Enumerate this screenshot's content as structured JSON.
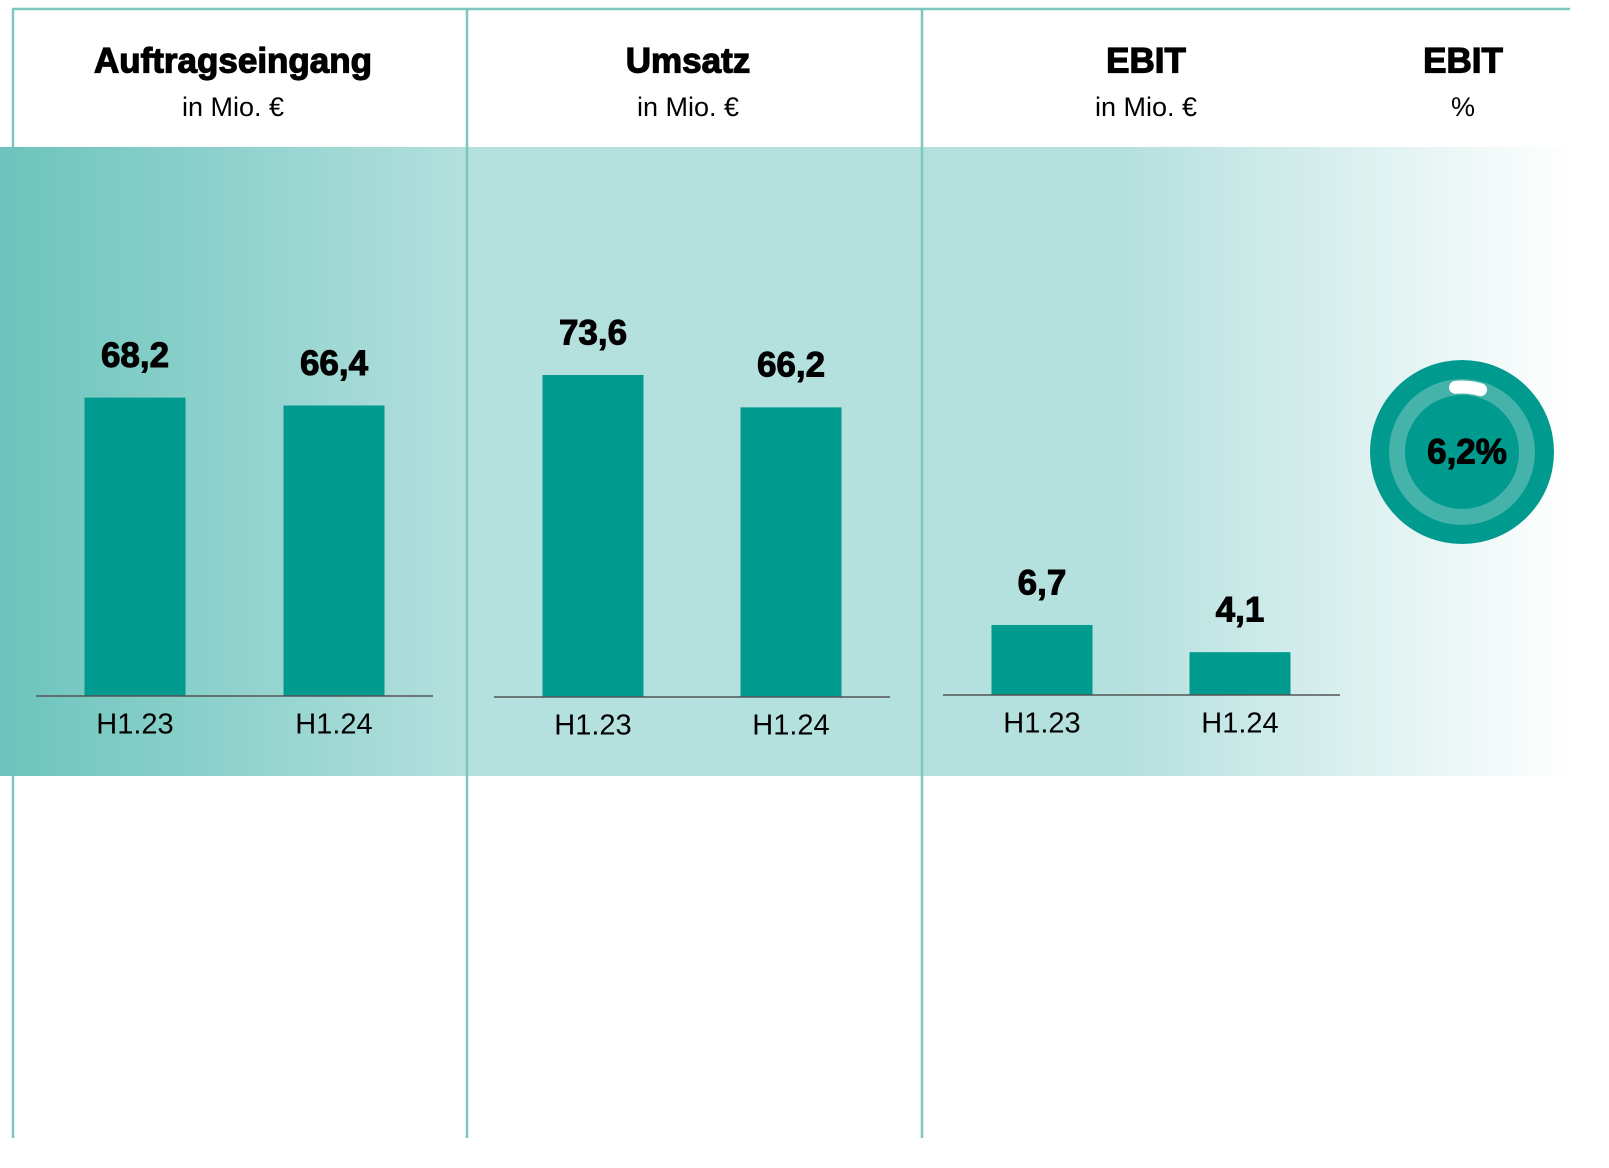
{
  "chart_data": [
    {
      "type": "bar",
      "title": "Auftragseingang",
      "subtitle": "in Mio. €",
      "categories": [
        "H1.23",
        "H1.24"
      ],
      "values": [
        68.2,
        66.4
      ],
      "value_labels": [
        "68,2",
        "66,4"
      ],
      "color": "#009a8e",
      "ylim": [
        0,
        80
      ]
    },
    {
      "type": "bar",
      "title": "Umsatz",
      "subtitle": "in Mio. €",
      "categories": [
        "H1.23",
        "H1.24"
      ],
      "values": [
        73.6,
        66.2
      ],
      "value_labels": [
        "73,6",
        "66,2"
      ],
      "color": "#009a8e",
      "ylim": [
        0,
        80
      ]
    },
    {
      "type": "bar",
      "title": "EBIT",
      "subtitle": "in Mio. €",
      "categories": [
        "H1.23",
        "H1.24"
      ],
      "values": [
        6.7,
        4.1
      ],
      "value_labels": [
        "6,7",
        "4,1"
      ],
      "color": "#009a8e",
      "ylim": [
        0,
        33.5
      ]
    },
    {
      "type": "gauge",
      "title": "EBIT",
      "subtitle": "%",
      "value": 6.2,
      "value_label": "6,2%",
      "color": "#009a8e"
    }
  ]
}
